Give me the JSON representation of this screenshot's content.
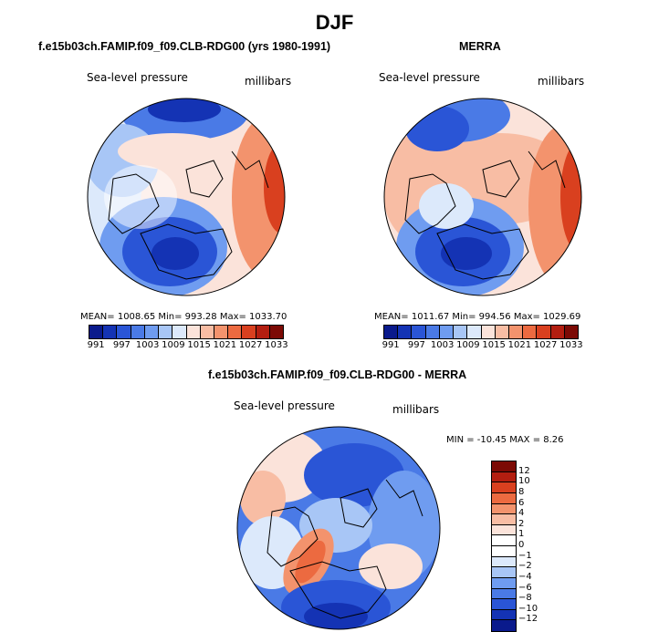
{
  "title": "DJF",
  "panels": {
    "model": {
      "title": "f.e15b03ch.FAMIP.f09_f09.CLB-RDG00 (yrs 1980-1991)",
      "variable": "Sea-level pressure",
      "units": "millibars",
      "stats": "MEAN= 1008.65   Min= 993.28   Max= 1033.70"
    },
    "obs": {
      "title": "MERRA",
      "variable": "Sea-level pressure",
      "units": "millibars",
      "stats": "MEAN= 1011.67   Min= 994.56   Max= 1029.69"
    },
    "diff": {
      "title": "f.e15b03ch.FAMIP.f09_f09.CLB-RDG00 - MERRA",
      "variable": "Sea-level pressure",
      "units": "millibars",
      "stats": "MIN = -10.45  MAX =   8.26"
    }
  },
  "colorbar_abs": {
    "colors": [
      "#0a1a8c",
      "#1433b4",
      "#2a55d6",
      "#4a7ae6",
      "#6f9cf0",
      "#a8c6f6",
      "#dce9fb",
      "#fbe3da",
      "#f8bda4",
      "#f3936d",
      "#ec6a40",
      "#d9401f",
      "#b31e10",
      "#7c0a05"
    ],
    "labels": [
      "991",
      "997",
      "1003",
      "1009",
      "1015",
      "1021",
      "1027",
      "1033"
    ]
  },
  "colorbar_diff": {
    "colors": [
      "#7c0a05",
      "#b31e10",
      "#d9401f",
      "#ec6a40",
      "#f3936d",
      "#f8bda4",
      "#fbe3da",
      "#ffffff",
      "#ffffff",
      "#dce9fb",
      "#a8c6f6",
      "#6f9cf0",
      "#4a7ae6",
      "#2a55d6",
      "#1433b4",
      "#0a1a8c"
    ],
    "labels": [
      "12",
      "10",
      "8",
      "6",
      "4",
      "2",
      "1",
      "0",
      "−1",
      "−2",
      "−4",
      "−6",
      "−8",
      "−10",
      "−12"
    ]
  }
}
